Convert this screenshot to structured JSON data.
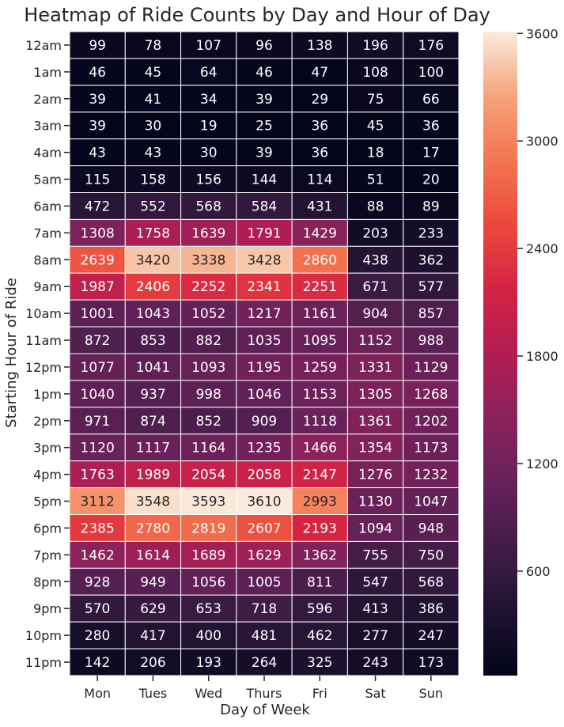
{
  "chart_data": {
    "type": "heatmap",
    "title": "Heatmap of Ride Counts by Day and Hour of Day",
    "xlabel": "Day of Week",
    "ylabel": "Starting Hour of Ride",
    "x_categories": [
      "Mon",
      "Tues",
      "Wed",
      "Thurs",
      "Fri",
      "Sat",
      "Sun"
    ],
    "y_categories": [
      "12am",
      "1am",
      "2am",
      "3am",
      "4am",
      "5am",
      "6am",
      "7am",
      "8am",
      "9am",
      "10am",
      "11am",
      "12pm",
      "1pm",
      "2pm",
      "3pm",
      "4pm",
      "5pm",
      "6pm",
      "7pm",
      "8pm",
      "9pm",
      "10pm",
      "11pm"
    ],
    "values": [
      [
        99,
        78,
        107,
        96,
        138,
        196,
        176
      ],
      [
        46,
        45,
        64,
        46,
        47,
        108,
        100
      ],
      [
        39,
        41,
        34,
        39,
        29,
        75,
        66
      ],
      [
        39,
        30,
        19,
        25,
        36,
        45,
        36
      ],
      [
        43,
        43,
        30,
        39,
        36,
        18,
        17
      ],
      [
        115,
        158,
        156,
        144,
        114,
        51,
        20
      ],
      [
        472,
        552,
        568,
        584,
        431,
        88,
        89
      ],
      [
        1308,
        1758,
        1639,
        1791,
        1429,
        203,
        233
      ],
      [
        2639,
        3420,
        3338,
        3428,
        2860,
        438,
        362
      ],
      [
        1987,
        2406,
        2252,
        2341,
        2251,
        671,
        577
      ],
      [
        1001,
        1043,
        1052,
        1217,
        1161,
        904,
        857
      ],
      [
        872,
        853,
        882,
        1035,
        1095,
        1152,
        988
      ],
      [
        1077,
        1041,
        1093,
        1195,
        1259,
        1331,
        1129
      ],
      [
        1040,
        937,
        998,
        1046,
        1153,
        1305,
        1268
      ],
      [
        971,
        874,
        852,
        909,
        1118,
        1361,
        1202
      ],
      [
        1120,
        1117,
        1164,
        1235,
        1466,
        1354,
        1173
      ],
      [
        1763,
        1989,
        2054,
        2058,
        2147,
        1276,
        1232
      ],
      [
        3112,
        3548,
        3593,
        3610,
        2993,
        1130,
        1047
      ],
      [
        2385,
        2780,
        2819,
        2607,
        2193,
        1094,
        948
      ],
      [
        1462,
        1614,
        1689,
        1629,
        1362,
        755,
        750
      ],
      [
        928,
        949,
        1056,
        1005,
        811,
        547,
        568
      ],
      [
        570,
        629,
        653,
        718,
        596,
        413,
        386
      ],
      [
        280,
        417,
        400,
        481,
        462,
        277,
        247
      ],
      [
        142,
        206,
        193,
        264,
        325,
        243,
        173
      ]
    ],
    "colorbar": {
      "colormap": "rocket",
      "vmin": 17,
      "vmax": 3610,
      "ticks": [
        600,
        1200,
        1800,
        2400,
        3000,
        3600
      ]
    },
    "annotations": true,
    "grid": false
  }
}
